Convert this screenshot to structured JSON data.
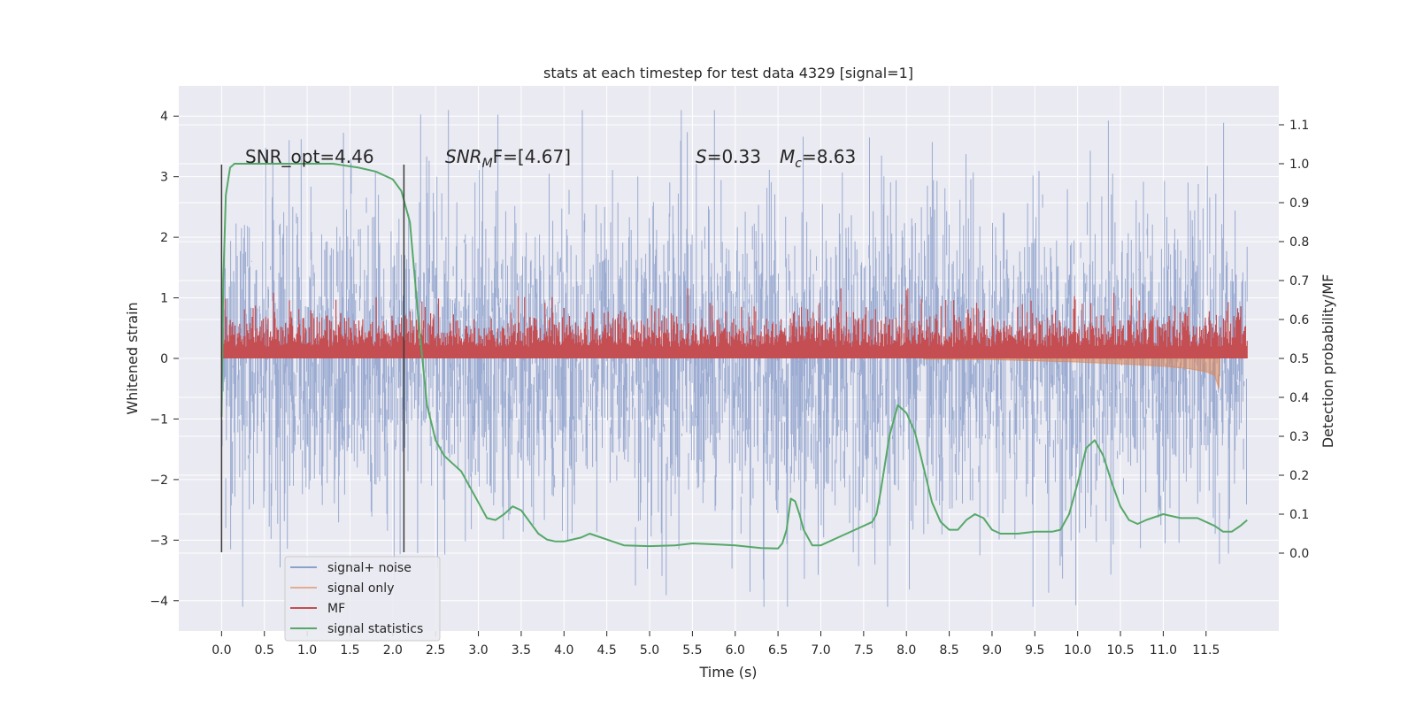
{
  "chart_data": {
    "type": "line",
    "title": "stats at each timestep for test data 4329 [signal=1]",
    "xlabel": "Time (s)",
    "ylabel": "Whitened strain",
    "y2label": "Detection probability/MF",
    "xlim": [
      -0.5,
      12.35
    ],
    "ylim": [
      -4.5,
      4.5
    ],
    "y2lim": [
      -0.2,
      1.2
    ],
    "x_ticks": [
      0.0,
      0.5,
      1.0,
      1.5,
      2.0,
      2.5,
      3.0,
      3.5,
      4.0,
      4.5,
      5.0,
      5.5,
      6.0,
      6.5,
      7.0,
      7.5,
      8.0,
      8.5,
      9.0,
      9.5,
      10.0,
      10.5,
      11.0,
      11.5
    ],
    "x_tick_labels": [
      "0.0",
      "0.5",
      "1.0",
      "1.5",
      "2.0",
      "2.5",
      "3.0",
      "3.5",
      "4.0",
      "4.5",
      "5.0",
      "5.5",
      "6.0",
      "6.5",
      "7.0",
      "7.5",
      "8.0",
      "8.5",
      "9.0",
      "9.5",
      "10.0",
      "10.5",
      "11.0",
      "11.5"
    ],
    "y_ticks": [
      -4,
      -3,
      -2,
      -1,
      0,
      1,
      2,
      3,
      4
    ],
    "y_tick_labels": [
      "−4",
      "−3",
      "−2",
      "−1",
      "0",
      "1",
      "2",
      "3",
      "4"
    ],
    "y2_ticks": [
      0.0,
      0.1,
      0.2,
      0.3,
      0.4,
      0.5,
      0.6,
      0.7,
      0.8,
      0.9,
      1.0,
      1.1
    ],
    "y2_tick_labels": [
      "0.0",
      "0.1",
      "0.2",
      "0.3",
      "0.4",
      "0.5",
      "0.6",
      "0.7",
      "0.8",
      "0.9",
      "1.0",
      "1.1"
    ],
    "grid": true,
    "legend_position": "lower-left",
    "legend": [
      "signal+ noise",
      "signal only",
      "MF",
      "signal statistics"
    ],
    "annotations": {
      "snr_opt": "SNR_opt=4.46",
      "snr_mf_italic": "SNR",
      "snr_mf_sub": "M",
      "snr_mf_rest": "F=[4.67]",
      "s_italic": "S",
      "s_rest": "=0.33",
      "mc_italic": "M",
      "mc_sub": "c",
      "mc_rest": "=8.63"
    },
    "vlines_x": [
      0.0,
      2.13
    ],
    "colors": {
      "signal_noise": "#8da0cb",
      "signal_only": "#dd8452",
      "mf": "#c44e52",
      "statistics": "#55a868",
      "background": "#eaeaf2",
      "grid": "#ffffff"
    },
    "signal_noise": {
      "x_range": [
        0.0,
        11.98
      ],
      "typical_amplitude": 1.3,
      "max_amplitude": 4.1
    },
    "mf": {
      "x_range": [
        0.0,
        11.98
      ],
      "axis": "y2",
      "baseline": 0.5,
      "typical_peak": 0.62,
      "max_peak": 0.68
    },
    "signal_only": {
      "axis": "y1",
      "x": [
        8.2,
        9.0,
        9.5,
        10.0,
        10.5,
        11.0,
        11.3,
        11.5,
        11.6,
        11.65,
        11.66
      ],
      "lower": [
        -0.01,
        -0.02,
        -0.04,
        -0.06,
        -0.09,
        -0.13,
        -0.17,
        -0.22,
        -0.28,
        -0.5,
        -0.05
      ]
    },
    "statistics": {
      "axis": "y2",
      "x": [
        0.0,
        0.02,
        0.05,
        0.1,
        0.15,
        0.2,
        0.3,
        0.5,
        0.8,
        1.0,
        1.3,
        1.6,
        1.8,
        2.0,
        2.1,
        2.2,
        2.3,
        2.4,
        2.5,
        2.6,
        2.7,
        2.8,
        2.9,
        3.0,
        3.1,
        3.2,
        3.3,
        3.4,
        3.5,
        3.6,
        3.7,
        3.8,
        3.9,
        4.0,
        4.2,
        4.3,
        4.5,
        4.7,
        5.0,
        5.3,
        5.5,
        5.8,
        6.0,
        6.3,
        6.5,
        6.55,
        6.6,
        6.65,
        6.7,
        6.75,
        6.8,
        6.9,
        7.0,
        7.2,
        7.4,
        7.6,
        7.65,
        7.7,
        7.8,
        7.9,
        8.0,
        8.1,
        8.2,
        8.3,
        8.4,
        8.5,
        8.6,
        8.7,
        8.8,
        8.9,
        9.0,
        9.1,
        9.3,
        9.5,
        9.7,
        9.8,
        9.9,
        10.0,
        10.1,
        10.2,
        10.3,
        10.4,
        10.5,
        10.6,
        10.7,
        10.8,
        11.0,
        11.2,
        11.4,
        11.6,
        11.7,
        11.8,
        11.9,
        11.98
      ],
      "y": [
        0.35,
        0.7,
        0.92,
        0.99,
        1.0,
        1.0,
        1.0,
        1.0,
        1.0,
        1.0,
        1.0,
        0.99,
        0.98,
        0.96,
        0.93,
        0.85,
        0.6,
        0.38,
        0.29,
        0.25,
        0.23,
        0.21,
        0.17,
        0.13,
        0.09,
        0.085,
        0.1,
        0.12,
        0.11,
        0.08,
        0.05,
        0.035,
        0.03,
        0.03,
        0.04,
        0.05,
        0.035,
        0.02,
        0.018,
        0.02,
        0.025,
        0.022,
        0.02,
        0.013,
        0.012,
        0.025,
        0.06,
        0.14,
        0.133,
        0.1,
        0.06,
        0.02,
        0.02,
        0.04,
        0.06,
        0.08,
        0.1,
        0.16,
        0.3,
        0.38,
        0.36,
        0.31,
        0.22,
        0.13,
        0.08,
        0.06,
        0.06,
        0.085,
        0.1,
        0.09,
        0.06,
        0.05,
        0.05,
        0.055,
        0.055,
        0.06,
        0.1,
        0.18,
        0.27,
        0.29,
        0.25,
        0.18,
        0.12,
        0.085,
        0.075,
        0.085,
        0.1,
        0.09,
        0.09,
        0.07,
        0.055,
        0.055,
        0.07,
        0.085
      ]
    }
  }
}
